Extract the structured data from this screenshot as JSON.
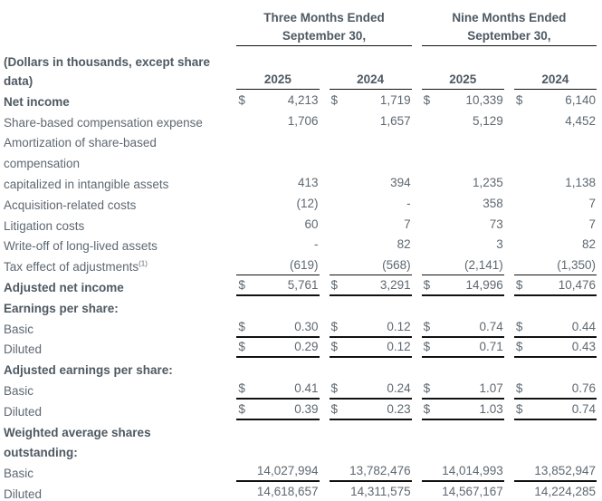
{
  "meta": {
    "background_color": "#ffffff",
    "text_color": "#5e6871",
    "bold_text_color": "#4e5962",
    "rule_color": "#111111"
  },
  "table": {
    "currency_symbol": "$",
    "unit_note_line1": "(Dollars in thousands, except share",
    "unit_note_line2": "data)",
    "column_groups": [
      {
        "title_line1": "Three Months Ended",
        "title_line2": "September 30,"
      },
      {
        "title_line1": "Nine Months Ended",
        "title_line2": "September 30,"
      }
    ],
    "year_headers": [
      "2025",
      "2024",
      "2025",
      "2024"
    ],
    "rows": [
      {
        "label": "Net income",
        "bold": true,
        "dollar": true,
        "values": [
          "4,213",
          "1,719",
          "10,339",
          "6,140"
        ]
      },
      {
        "label": "Share-based compensation expense",
        "values": [
          "1,706",
          "1,657",
          "5,129",
          "4,452"
        ]
      },
      {
        "label": "Amortization of share-based",
        "values": null
      },
      {
        "label": "compensation",
        "values": null
      },
      {
        "label": "capitalized in intangible assets",
        "values": [
          "413",
          "394",
          "1,235",
          "1,138"
        ]
      },
      {
        "label": "Acquisition-related costs",
        "values": [
          "(12)",
          "-",
          "358",
          "7"
        ]
      },
      {
        "label": "Litigation costs",
        "values": [
          "60",
          "7",
          "73",
          "7"
        ]
      },
      {
        "label": "Write-off of long-lived assets",
        "values": [
          "-",
          "82",
          "3",
          "82"
        ]
      },
      {
        "label": "Tax effect of adjustments",
        "footnote": "(1)",
        "values": [
          "(619)",
          "(568)",
          "(2,141)",
          "(1,350)"
        ],
        "border_bottom": "thin"
      },
      {
        "label": "Adjusted net income",
        "bold": true,
        "dollar": true,
        "values": [
          "5,761",
          "3,291",
          "14,996",
          "10,476"
        ],
        "border_bottom": "thick"
      },
      {
        "label": "Earnings per share:",
        "bold": true,
        "values": null
      },
      {
        "label": "Basic",
        "dollar": true,
        "values": [
          "0.30",
          "0.12",
          "0.74",
          "0.44"
        ],
        "border_bottom": "thick"
      },
      {
        "label": "Diluted",
        "dollar": true,
        "values": [
          "0.29",
          "0.12",
          "0.71",
          "0.43"
        ],
        "border_bottom": "thick"
      },
      {
        "label": "Adjusted earnings per share:",
        "bold": true,
        "values": null
      },
      {
        "label": "Basic",
        "dollar": true,
        "values": [
          "0.41",
          "0.24",
          "1.07",
          "0.76"
        ],
        "border_bottom": "thick"
      },
      {
        "label": "Diluted",
        "dollar": true,
        "values": [
          "0.39",
          "0.23",
          "1.03",
          "0.74"
        ],
        "border_bottom": "thick"
      },
      {
        "label": "Weighted average shares",
        "bold": true,
        "values": null
      },
      {
        "label": "outstanding:",
        "bold": true,
        "values": null
      },
      {
        "label": "Basic",
        "values": [
          "14,027,994",
          "13,782,476",
          "14,014,993",
          "13,852,947"
        ],
        "border_bottom": "thick"
      },
      {
        "label": "Diluted",
        "values": [
          "14,618,657",
          "14,311,575",
          "14,567,167",
          "14,224,285"
        ],
        "border_bottom": "thick"
      }
    ]
  }
}
